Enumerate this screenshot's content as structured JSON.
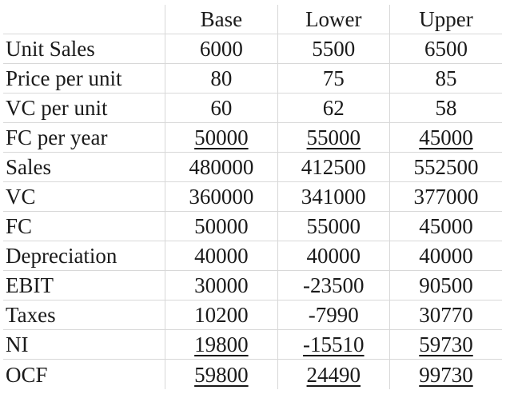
{
  "columns": [
    "Base",
    "Lower",
    "Upper"
  ],
  "rows": [
    {
      "label": "Unit Sales",
      "values": [
        "6000",
        "5500",
        "6500"
      ],
      "underline": false
    },
    {
      "label": "Price per unit",
      "values": [
        "80",
        "75",
        "85"
      ],
      "underline": false
    },
    {
      "label": "VC per unit",
      "values": [
        "60",
        "62",
        "58"
      ],
      "underline": false
    },
    {
      "label": "FC per year",
      "values": [
        "50000",
        "55000",
        "45000"
      ],
      "underline": true
    },
    {
      "label": "Sales",
      "values": [
        "480000",
        "412500",
        "552500"
      ],
      "underline": false
    },
    {
      "label": "VC",
      "values": [
        "360000",
        "341000",
        "377000"
      ],
      "underline": false
    },
    {
      "label": "FC",
      "values": [
        "50000",
        "55000",
        "45000"
      ],
      "underline": false
    },
    {
      "label": "Depreciation",
      "values": [
        "40000",
        "40000",
        "40000"
      ],
      "underline": false
    },
    {
      "label": "EBIT",
      "values": [
        "30000",
        "-23500",
        "90500"
      ],
      "underline": false
    },
    {
      "label": "Taxes",
      "values": [
        "10200",
        "-7990",
        "30770"
      ],
      "underline": false
    },
    {
      "label": "NI",
      "values": [
        "19800",
        "-15510",
        "59730"
      ],
      "underline": true
    },
    {
      "label": "OCF",
      "values": [
        "59800",
        "24490",
        "99730"
      ],
      "underline": true
    }
  ]
}
